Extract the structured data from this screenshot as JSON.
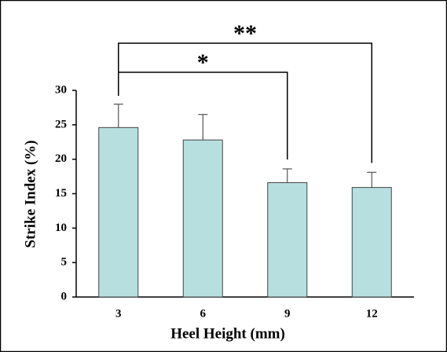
{
  "chart_data": {
    "type": "bar",
    "x_label": "Heel Height (mm)",
    "y_label": "Strike Index (%)",
    "categories": [
      "3",
      "6",
      "9",
      "12"
    ],
    "values": [
      24.6,
      22.8,
      16.6,
      15.9
    ],
    "errors": [
      3.4,
      3.7,
      2.0,
      2.2
    ],
    "color": "#b7dfe0",
    "edge_color": "#444444",
    "ylim": [
      0,
      30
    ],
    "yticks": [
      0,
      5,
      10,
      15,
      20,
      25,
      30
    ],
    "grid": false,
    "annotations": [
      {
        "text": "*",
        "between": [
          "3",
          "9"
        ]
      },
      {
        "text": "**",
        "between": [
          "3",
          "12"
        ]
      }
    ]
  }
}
